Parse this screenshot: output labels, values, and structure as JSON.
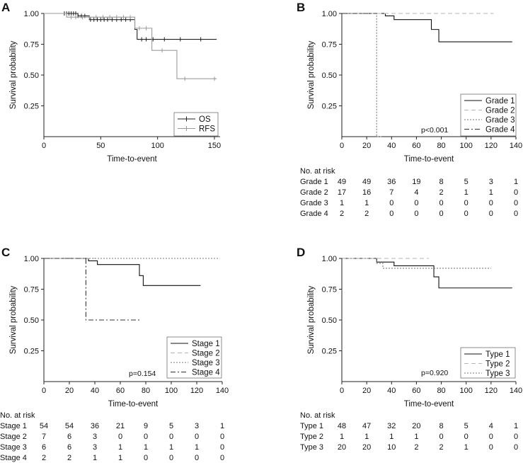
{
  "chart_data": [
    {
      "panel": "A",
      "type": "line",
      "title": "",
      "xlabel": "Time-to-event",
      "ylabel": "Survival probability",
      "xlim": [
        0,
        155
      ],
      "ylim": [
        0,
        1.0
      ],
      "xticks": [
        0,
        50,
        100,
        150
      ],
      "yticks": [
        0.25,
        0.5,
        0.75,
        1.0
      ],
      "ytick_labels": [
        "0.25",
        "0.50",
        "0.75",
        "1.00"
      ],
      "legend_position": "bottom-right",
      "legend_label_width": 4,
      "series": [
        {
          "name": "OS",
          "color": "#222222",
          "dash": "",
          "marker": "plus",
          "x": [
            0,
            30,
            40,
            80,
            82,
            152
          ],
          "y": [
            1.0,
            0.98,
            0.95,
            0.87,
            0.79,
            0.79
          ],
          "censor_x": [
            18,
            20,
            22,
            24,
            26,
            28,
            30,
            33,
            36,
            41,
            44,
            47,
            50,
            53,
            56,
            60,
            64,
            68,
            72,
            76,
            86,
            90,
            96,
            106,
            120,
            138
          ],
          "censor_y": [
            1.0,
            1.0,
            1.0,
            1.0,
            1.0,
            1.0,
            0.98,
            0.98,
            0.98,
            0.95,
            0.95,
            0.95,
            0.95,
            0.95,
            0.95,
            0.95,
            0.95,
            0.95,
            0.95,
            0.95,
            0.79,
            0.79,
            0.79,
            0.79,
            0.79,
            0.79
          ]
        },
        {
          "name": "RFS",
          "color": "#9a9a9a",
          "dash": "",
          "marker": "plus",
          "x": [
            0,
            20,
            80,
            95,
            117,
            152
          ],
          "y": [
            1.0,
            0.97,
            0.88,
            0.7,
            0.47,
            0.47
          ],
          "censor_x": [
            24,
            28,
            34,
            40,
            46,
            52,
            58,
            64,
            70,
            76,
            84,
            90,
            104,
            124,
            150
          ],
          "censor_y": [
            0.97,
            0.97,
            0.97,
            0.97,
            0.97,
            0.97,
            0.97,
            0.97,
            0.97,
            0.97,
            0.88,
            0.88,
            0.7,
            0.47,
            0.47
          ]
        }
      ],
      "pvalue": ""
    },
    {
      "panel": "B",
      "type": "line",
      "title": "",
      "xlabel": "Time-to-event",
      "ylabel": "Survival probability",
      "xlim": [
        0,
        140
      ],
      "ylim": [
        0,
        1.0
      ],
      "xticks": [
        0,
        20,
        40,
        60,
        80,
        100,
        120,
        140
      ],
      "yticks": [
        0.25,
        0.5,
        0.75,
        1.0
      ],
      "ytick_labels": [
        "0.25",
        "0.50",
        "0.75",
        "1.00"
      ],
      "legend_position": "bottom-right",
      "legend_label_width": 7,
      "series": [
        {
          "name": "Grade 1",
          "color": "#111111",
          "dash": "",
          "x": [
            0,
            35,
            42,
            72,
            78,
            137
          ],
          "y": [
            1.0,
            0.98,
            0.95,
            0.87,
            0.77,
            0.77
          ]
        },
        {
          "name": "Grade 2",
          "color": "#b5b5b5",
          "dash": "6,4",
          "x": [
            0,
            122
          ],
          "y": [
            1.0,
            1.0
          ]
        },
        {
          "name": "Grade 3",
          "color": "#777777",
          "dash": "2,2",
          "x": [
            0,
            28,
            28,
            32
          ],
          "y": [
            1.0,
            1.0,
            0.0,
            0.0
          ]
        },
        {
          "name": "Grade 4",
          "color": "#333333",
          "dash": "7,3,2,3",
          "x": [
            0,
            28
          ],
          "y": [
            1.0,
            1.0
          ]
        }
      ],
      "pvalue": "p<0.001",
      "risk_table": {
        "title": "No. at risk",
        "rows": [
          {
            "label": "Grade 1",
            "values": [
              "49",
              "49",
              "36",
              "19",
              "8",
              "5",
              "3",
              "1"
            ]
          },
          {
            "label": "Grade 2",
            "values": [
              "17",
              "16",
              "7",
              "4",
              "2",
              "1",
              "1",
              "0"
            ]
          },
          {
            "label": "Grade 3",
            "values": [
              "1",
              "1",
              "0",
              "0",
              "0",
              "0",
              "0",
              "0"
            ]
          },
          {
            "label": "Grade 4",
            "values": [
              "2",
              "2",
              "0",
              "0",
              "0",
              "0",
              "0",
              "0"
            ]
          }
        ]
      }
    },
    {
      "panel": "C",
      "type": "line",
      "title": "",
      "xlabel": "Time-to-event",
      "ylabel": "Survival probability",
      "xlim": [
        0,
        140
      ],
      "ylim": [
        0,
        1.0
      ],
      "xticks": [
        0,
        20,
        40,
        60,
        80,
        100,
        120,
        140
      ],
      "yticks": [
        0.25,
        0.5,
        0.75,
        1.0
      ],
      "ytick_labels": [
        "0.25",
        "0.50",
        "0.75",
        "1.00"
      ],
      "legend_position": "bottom-right",
      "legend_label_width": 7,
      "series": [
        {
          "name": "Stage 1",
          "color": "#111111",
          "dash": "",
          "x": [
            0,
            35,
            42,
            75,
            78,
            123
          ],
          "y": [
            1.0,
            0.98,
            0.95,
            0.86,
            0.78,
            0.78
          ]
        },
        {
          "name": "Stage 2",
          "color": "#b5b5b5",
          "dash": "6,4",
          "x": [
            0,
            40
          ],
          "y": [
            1.0,
            1.0
          ]
        },
        {
          "name": "Stage 3",
          "color": "#777777",
          "dash": "2,2",
          "x": [
            0,
            138
          ],
          "y": [
            1.0,
            1.0
          ]
        },
        {
          "name": "Stage 4",
          "color": "#333333",
          "dash": "7,3,2,3",
          "x": [
            0,
            33,
            33,
            76
          ],
          "y": [
            1.0,
            1.0,
            0.5,
            0.5
          ]
        }
      ],
      "pvalue": "p=0.154",
      "risk_table": {
        "title": "No. at risk",
        "rows": [
          {
            "label": "Stage 1",
            "values": [
              "54",
              "54",
              "36",
              "21",
              "9",
              "5",
              "3",
              "1"
            ]
          },
          {
            "label": "Stage 2",
            "values": [
              "7",
              "6",
              "3",
              "0",
              "0",
              "0",
              "0",
              "0"
            ]
          },
          {
            "label": "Stage 3",
            "values": [
              "6",
              "6",
              "3",
              "1",
              "1",
              "1",
              "1",
              "0"
            ]
          },
          {
            "label": "Stage 4",
            "values": [
              "2",
              "2",
              "1",
              "1",
              "0",
              "0",
              "0",
              "0"
            ]
          }
        ]
      }
    },
    {
      "panel": "D",
      "type": "line",
      "title": "",
      "xlabel": "Time-to-event",
      "ylabel": "Survival probability",
      "xlim": [
        0,
        140
      ],
      "ylim": [
        0,
        1.0
      ],
      "xticks": [
        0,
        20,
        40,
        60,
        80,
        100,
        120,
        140
      ],
      "yticks": [
        0.25,
        0.5,
        0.75,
        1.0
      ],
      "ytick_labels": [
        "0.25",
        "0.50",
        "0.75",
        "1.00"
      ],
      "legend_position": "bottom-right",
      "legend_label_width": 6,
      "series": [
        {
          "name": "Type 1",
          "color": "#111111",
          "dash": "",
          "x": [
            0,
            28,
            42,
            74,
            78,
            137
          ],
          "y": [
            1.0,
            0.97,
            0.94,
            0.85,
            0.76,
            0.76
          ]
        },
        {
          "name": "Type 2",
          "color": "#b5b5b5",
          "dash": "6,4",
          "x": [
            0,
            70
          ],
          "y": [
            1.0,
            1.0
          ]
        },
        {
          "name": "Type 3",
          "color": "#777777",
          "dash": "2,2",
          "x": [
            0,
            28,
            33,
            120
          ],
          "y": [
            1.0,
            0.96,
            0.92,
            0.92
          ]
        }
      ],
      "pvalue": "p=0.920",
      "risk_table": {
        "title": "No. at risk",
        "rows": [
          {
            "label": "Type 1",
            "values": [
              "48",
              "47",
              "32",
              "20",
              "8",
              "5",
              "4",
              "1"
            ]
          },
          {
            "label": "Type 2",
            "values": [
              "1",
              "1",
              "1",
              "1",
              "0",
              "0",
              "0",
              "0"
            ]
          },
          {
            "label": "Type 3",
            "values": [
              "20",
              "20",
              "10",
              "2",
              "2",
              "1",
              "0",
              "0"
            ]
          }
        ]
      }
    }
  ]
}
